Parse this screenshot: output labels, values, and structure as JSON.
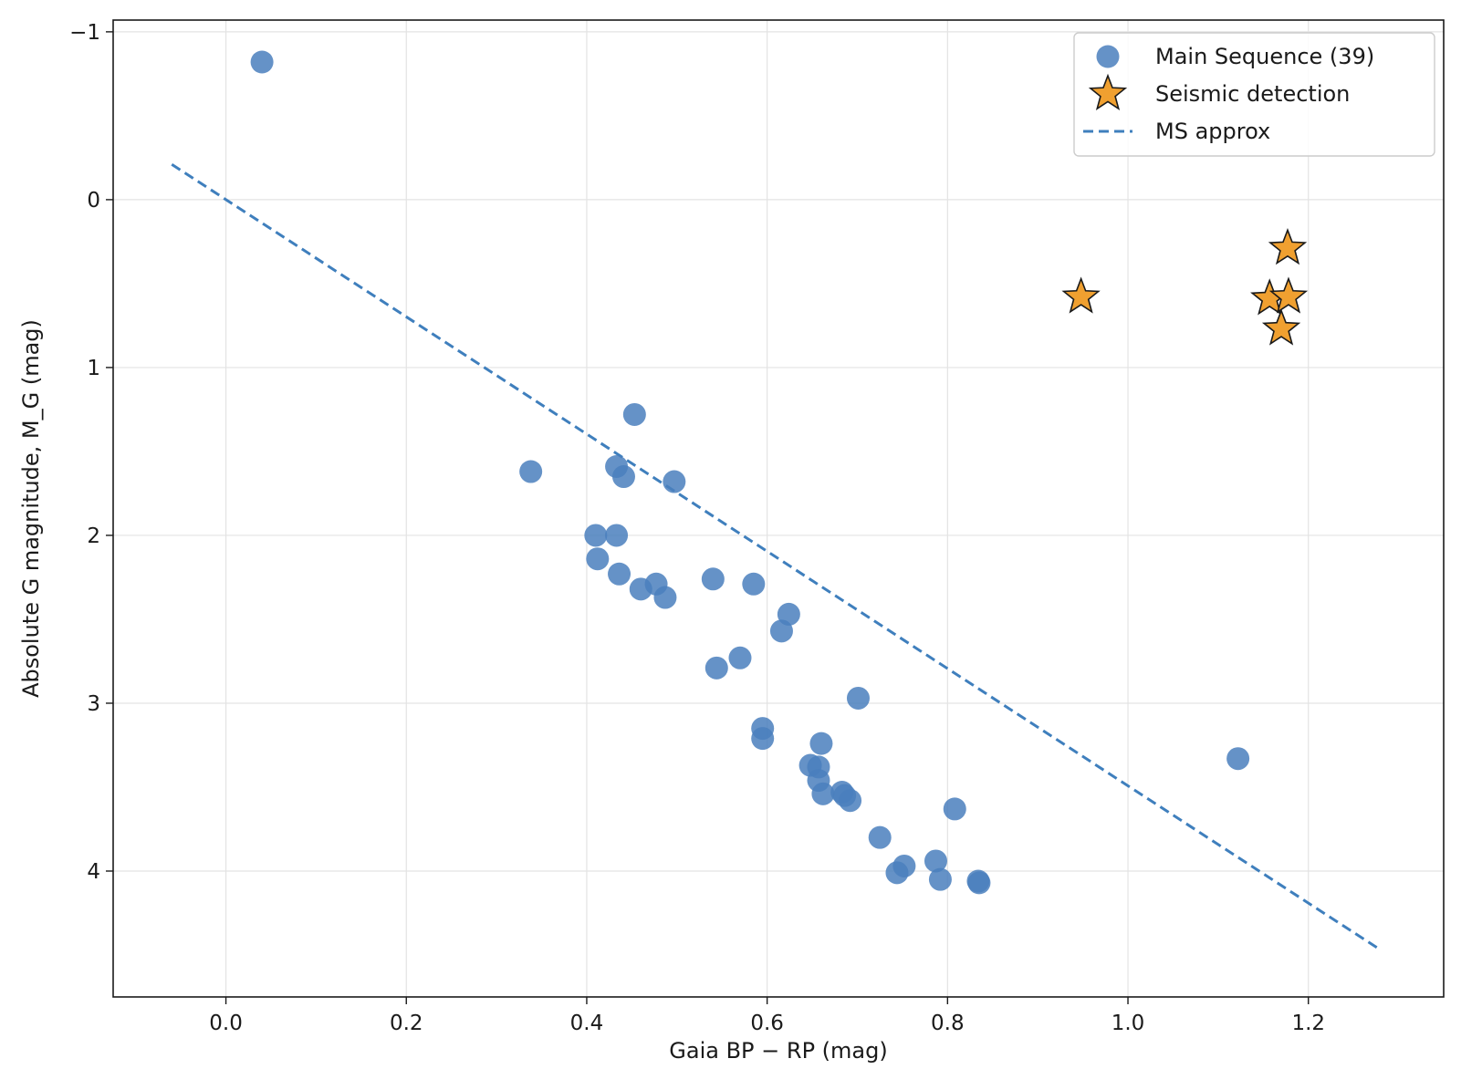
{
  "chart_data": {
    "type": "scatter",
    "title": "",
    "xlabel": "Gaia BP − RP (mag)",
    "ylabel": "Absolute G magnitude, M_G (mag)",
    "xlim": [
      -0.125,
      1.35
    ],
    "ylim": [
      4.75,
      -1.07
    ],
    "y_inverted": true,
    "grid": true,
    "legend_position": "top-right",
    "x_ticks": [
      0.0,
      0.2,
      0.4,
      0.6,
      0.8,
      1.0,
      1.2
    ],
    "x_tick_labels": [
      "0.0",
      "0.2",
      "0.4",
      "0.6",
      "0.8",
      "1.0",
      "1.2"
    ],
    "y_ticks": [
      -1,
      0,
      1,
      2,
      3,
      4
    ],
    "y_tick_labels": [
      "−1",
      "0",
      "1",
      "2",
      "3",
      "4"
    ],
    "series": [
      {
        "name": "Main Sequence (39)",
        "kind": "scatter",
        "marker": "circle",
        "color": "#4a7fbd",
        "points": [
          [
            0.04,
            -0.82
          ],
          [
            0.338,
            1.62
          ],
          [
            0.453,
            1.28
          ],
          [
            0.433,
            1.59
          ],
          [
            0.441,
            1.65
          ],
          [
            0.497,
            1.68
          ],
          [
            0.41,
            2.0
          ],
          [
            0.433,
            2.0
          ],
          [
            0.412,
            2.14
          ],
          [
            0.436,
            2.23
          ],
          [
            0.46,
            2.32
          ],
          [
            0.477,
            2.29
          ],
          [
            0.487,
            2.37
          ],
          [
            0.54,
            2.26
          ],
          [
            0.585,
            2.29
          ],
          [
            0.624,
            2.47
          ],
          [
            0.616,
            2.57
          ],
          [
            0.57,
            2.73
          ],
          [
            0.544,
            2.79
          ],
          [
            0.701,
            2.97
          ],
          [
            0.595,
            3.15
          ],
          [
            0.595,
            3.21
          ],
          [
            0.66,
            3.24
          ],
          [
            0.648,
            3.37
          ],
          [
            0.657,
            3.38
          ],
          [
            0.657,
            3.46
          ],
          [
            0.662,
            3.54
          ],
          [
            0.683,
            3.53
          ],
          [
            0.686,
            3.55
          ],
          [
            0.692,
            3.58
          ],
          [
            0.808,
            3.63
          ],
          [
            0.725,
            3.8
          ],
          [
            0.752,
            3.97
          ],
          [
            0.744,
            4.01
          ],
          [
            0.787,
            3.94
          ],
          [
            0.792,
            4.05
          ],
          [
            0.834,
            4.06
          ],
          [
            0.835,
            4.07
          ],
          [
            1.122,
            3.33
          ]
        ]
      },
      {
        "name": "Seismic detection",
        "kind": "scatter",
        "marker": "star",
        "color": "#f0a030",
        "edge_color": "#1a1a1a",
        "points": [
          [
            0.948,
            0.58
          ],
          [
            1.177,
            0.29
          ],
          [
            1.157,
            0.59
          ],
          [
            1.178,
            0.58
          ],
          [
            1.17,
            0.77
          ]
        ]
      },
      {
        "name": "MS approx",
        "kind": "line",
        "style": "dashed",
        "color": "#3f7fbd",
        "points": [
          [
            -0.06,
            -0.21
          ],
          [
            1.28,
            4.47
          ]
        ]
      }
    ]
  }
}
